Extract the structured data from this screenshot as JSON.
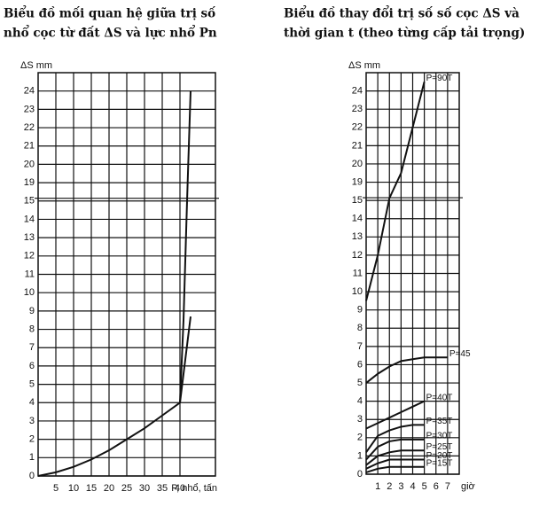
{
  "chart_data": [
    {
      "type": "line",
      "title_lines": [
        "Biểu đồ mối quan hệ giữa trị số",
        "nhổ cọc từ đất ΔS và lực nhổ Pn"
      ],
      "ylabel": "ΔS mm",
      "xlabel": "P, nhổ, tấn",
      "xlim": [
        0,
        50
      ],
      "xticks": [
        5,
        10,
        15,
        20,
        25,
        30,
        35,
        40
      ],
      "ylim": [
        0,
        25
      ],
      "yticks": [
        0,
        1,
        2,
        3,
        4,
        5,
        6,
        7,
        8,
        9,
        10,
        11,
        12,
        13,
        14,
        15,
        19,
        20,
        21,
        22,
        23,
        24
      ],
      "axis_break": [
        15,
        19
      ],
      "grid": true,
      "color": "#111111",
      "series": [
        {
          "x": [
            0,
            5,
            10,
            15,
            20,
            25,
            30,
            35,
            40,
            43
          ],
          "values": [
            0,
            0.2,
            0.5,
            0.9,
            1.4,
            2.0,
            2.6,
            3.3,
            4.0,
            8.7
          ]
        },
        {
          "x": [
            40,
            41,
            42,
            43
          ],
          "values": [
            4.0,
            8.5,
            15,
            24
          ]
        }
      ]
    },
    {
      "type": "line",
      "title_lines": [
        "Biểu đồ thay đổi trị số số cọc ΔS và",
        "thời gian t (theo từng cấp tải trọng)"
      ],
      "ylabel": "ΔS mm",
      "xlabel": "giờ",
      "xlim": [
        0,
        8
      ],
      "xticks": [
        1,
        2,
        3,
        4,
        5,
        6,
        7
      ],
      "ylim": [
        0,
        25
      ],
      "yticks": [
        0,
        1,
        2,
        3,
        4,
        5,
        6,
        7,
        8,
        9,
        10,
        11,
        12,
        13,
        14,
        15,
        19,
        20,
        21,
        22,
        23,
        24
      ],
      "axis_break": [
        15,
        19
      ],
      "grid": true,
      "color": "#111111",
      "x": [
        0,
        1,
        2,
        3,
        4,
        5,
        6,
        7
      ],
      "series": [
        {
          "name": "P=90T",
          "values": [
            9.5,
            12,
            15.5,
            19.5,
            22,
            24.5,
            null,
            null
          ]
        },
        {
          "name": "P=45",
          "values": [
            5.0,
            5.5,
            5.9,
            6.2,
            6.3,
            6.4,
            6.4,
            6.4
          ]
        },
        {
          "name": "P=40T",
          "values": [
            2.5,
            2.8,
            3.1,
            3.4,
            3.7,
            4.0,
            null,
            null
          ]
        },
        {
          "name": "P=35T",
          "values": [
            1.2,
            2.1,
            2.4,
            2.6,
            2.7,
            2.7,
            null,
            null
          ]
        },
        {
          "name": "P=30T",
          "values": [
            0.8,
            1.5,
            1.8,
            1.9,
            1.9,
            1.9,
            null,
            null
          ]
        },
        {
          "name": "P=25T",
          "values": [
            0.5,
            1.0,
            1.2,
            1.3,
            1.3,
            1.3,
            null,
            null
          ]
        },
        {
          "name": "P=20T",
          "values": [
            0.3,
            0.6,
            0.8,
            0.8,
            0.8,
            0.8,
            null,
            null
          ]
        },
        {
          "name": "P=15T",
          "values": [
            0.1,
            0.3,
            0.4,
            0.4,
            0.4,
            0.4,
            null,
            null
          ]
        }
      ]
    }
  ]
}
